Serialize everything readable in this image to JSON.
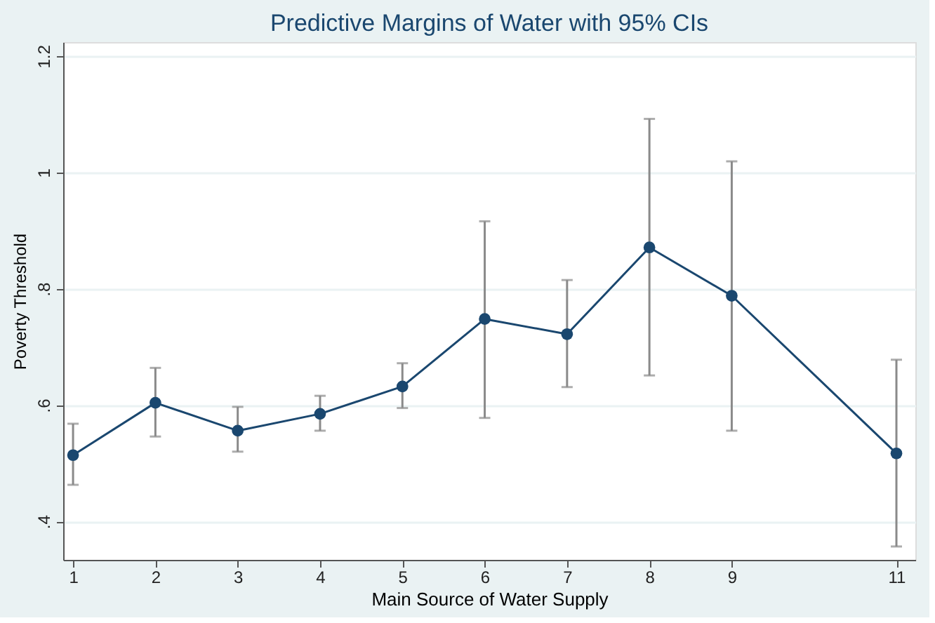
{
  "chart_data": {
    "type": "line",
    "title": "Predictive Margins of Water with 95% CIs",
    "xlabel": "Main Source of Water Supply",
    "ylabel": "Poverty Threshold",
    "x": [
      1,
      2,
      3,
      4,
      5,
      6,
      7,
      8,
      9,
      11
    ],
    "series": [
      {
        "color": "#1a476f",
        "values": [
          0.514,
          0.604,
          0.556,
          0.585,
          0.632,
          0.748,
          0.722,
          0.871,
          0.788,
          0.517
        ],
        "errors": [
          [
            0.463,
            0.568
          ],
          [
            0.546,
            0.664
          ],
          [
            0.52,
            0.597
          ],
          [
            0.556,
            0.616
          ],
          [
            0.595,
            0.672
          ],
          [
            0.578,
            0.916
          ],
          [
            0.631,
            0.815
          ],
          [
            0.651,
            1.092
          ],
          [
            0.556,
            1.019
          ],
          [
            0.357,
            0.678
          ]
        ]
      }
    ],
    "xlim": [
      0.88,
      11.23
    ],
    "xticks": [
      1,
      2,
      3,
      4,
      5,
      6,
      7,
      8,
      9,
      11
    ],
    "ylim": [
      0.334,
      1.224
    ],
    "yticks": [
      {
        "value": 0.4,
        "label": ".4"
      },
      {
        "value": 0.6,
        "label": ".6"
      },
      {
        "value": 0.8,
        "label": ".8"
      },
      {
        "value": 1,
        "label": "1"
      },
      {
        "value": 1.2,
        "label": "1.2"
      }
    ],
    "grid": "y",
    "marker": "circle",
    "line_style": "solid"
  }
}
